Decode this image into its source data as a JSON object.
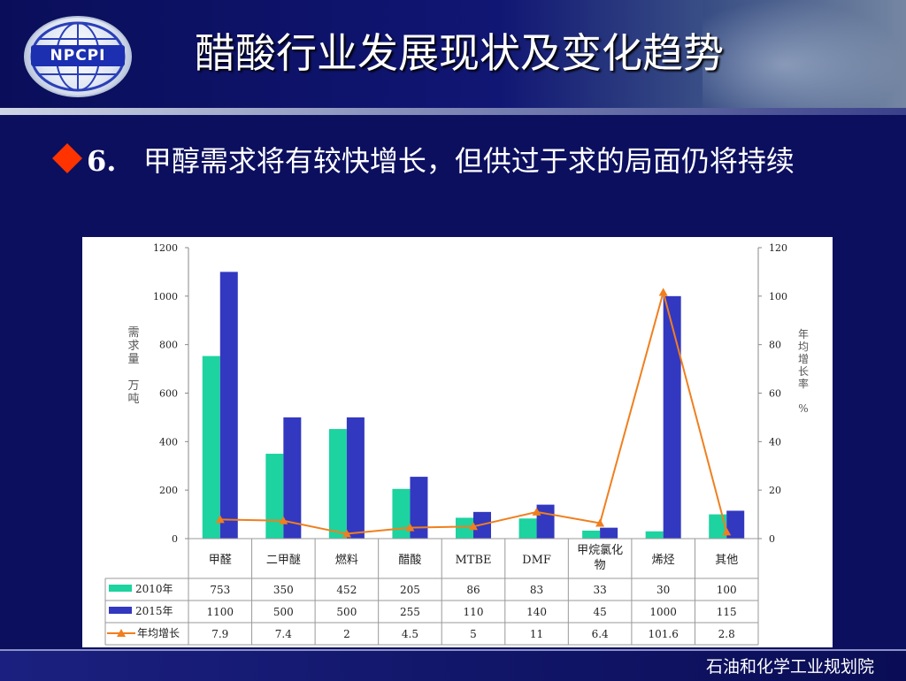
{
  "header": {
    "logo_text": "NPCPI",
    "title": "醋酸行业发展现状及变化趋势"
  },
  "headline": {
    "number": "6.",
    "text": "甲醇需求将有较快增长，但供过于求的局面仍将持续"
  },
  "footer": {
    "organization": "石油和化学工业规划院"
  },
  "colors": {
    "background": "#0c0f5e",
    "bullet": "#ff3300",
    "series_2010": "#1dd3a0",
    "series_2015": "#3338c0",
    "growth_line": "#f07f1e"
  },
  "chart_data": {
    "type": "bar",
    "categories": [
      "甲醛",
      "二甲醚",
      "燃料",
      "醋酸",
      "MTBE",
      "DMF",
      "甲烷氯化物",
      "烯烃",
      "其他"
    ],
    "category_lines": [
      [
        "甲醛"
      ],
      [
        "二甲醚"
      ],
      [
        "燃料"
      ],
      [
        "醋酸"
      ],
      [
        "MTBE"
      ],
      [
        "DMF"
      ],
      [
        "甲烷氯化",
        "物"
      ],
      [
        "烯烃"
      ],
      [
        "其他"
      ]
    ],
    "series": [
      {
        "name": "2010年",
        "type": "bar",
        "axis": "left",
        "values": [
          753,
          350,
          452,
          205,
          86,
          83,
          33,
          30,
          100
        ]
      },
      {
        "name": "2015年",
        "type": "bar",
        "axis": "left",
        "values": [
          1100,
          500,
          500,
          255,
          110,
          140,
          45,
          1000,
          115
        ]
      },
      {
        "name": "年均增长",
        "type": "line",
        "axis": "right",
        "values": [
          7.9,
          7.4,
          2,
          4.5,
          5,
          11,
          6.4,
          101.6,
          2.8
        ]
      }
    ],
    "table_values": [
      [
        "753",
        "350",
        "452",
        "205",
        "86",
        "83",
        "33",
        "30",
        "100"
      ],
      [
        "1100",
        "500",
        "500",
        "255",
        "110",
        "140",
        "45",
        "1000",
        "115"
      ],
      [
        "7.9",
        "7.4",
        "2",
        "4.5",
        "5",
        "11",
        "6.4",
        "101.6",
        "2.8"
      ]
    ],
    "ylabel_left": "需求量 万吨",
    "ylabel_left_lines": [
      "需",
      "求",
      "量",
      "",
      "万",
      "吨"
    ],
    "ylabel_right": "年均增长率 %",
    "ylabel_right_lines": [
      "年",
      "均",
      "增",
      "长",
      "率",
      "",
      "%"
    ],
    "ylim_left": [
      0,
      1200
    ],
    "ylim_right": [
      0,
      120
    ],
    "yticks_left": [
      "0",
      "200",
      "400",
      "600",
      "800",
      "1000",
      "1200"
    ],
    "yticks_right": [
      "0",
      "20",
      "40",
      "60",
      "80",
      "100",
      "120"
    ],
    "grid": false,
    "legend": "data-table"
  }
}
